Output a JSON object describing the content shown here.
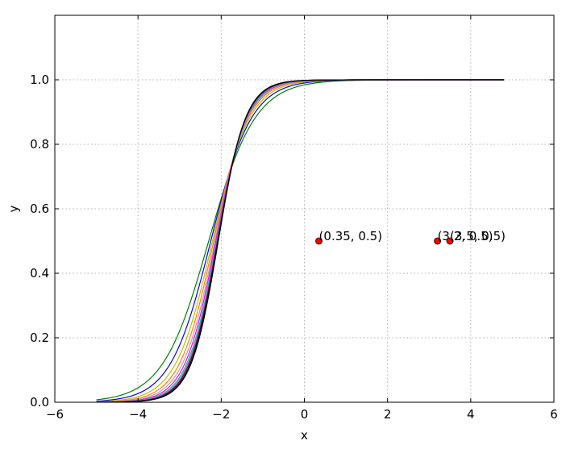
{
  "chart_data": {
    "type": "line",
    "title": "",
    "xlabel": "x",
    "ylabel": "y",
    "xlim": [
      -6,
      6
    ],
    "ylim": [
      0,
      1.2
    ],
    "xticks": [
      -6,
      -4,
      -2,
      0,
      2,
      4,
      6
    ],
    "yticks": [
      0.0,
      0.2,
      0.4,
      0.6,
      0.8,
      1.0
    ],
    "xtick_labels": [
      "−6",
      "−4",
      "−2",
      "0",
      "2",
      "4",
      "6"
    ],
    "ytick_labels": [
      "0.0",
      "0.2",
      "0.4",
      "0.6",
      "0.8",
      "1.0"
    ],
    "grid": true,
    "x_range": [
      -5,
      4.8
    ],
    "series": [
      {
        "color": "#008000",
        "x0": -2.3,
        "k": 1.8
      },
      {
        "color": "#0000ff",
        "x0": -2.25,
        "k": 2.05
      },
      {
        "color": "#bfbf00",
        "x0": -2.21,
        "k": 2.25
      },
      {
        "color": "#ff7f0e",
        "x0": -2.18,
        "k": 2.42
      },
      {
        "color": "#c0a0a0",
        "x0": -2.15,
        "k": 2.55
      },
      {
        "color": "#ff00ff",
        "x0": -2.13,
        "k": 2.68
      },
      {
        "color": "#00bfbf",
        "x0": -2.11,
        "k": 2.78
      },
      {
        "color": "#808080",
        "x0": -2.1,
        "k": 2.86
      },
      {
        "color": "#800000",
        "x0": -2.09,
        "k": 2.93
      },
      {
        "color": "#000080",
        "x0": -2.08,
        "k": 3.0
      },
      {
        "color": "#000000",
        "x0": -2.07,
        "k": 3.05
      }
    ],
    "points": [
      {
        "x": 0.35,
        "y": 0.5,
        "label": "(0.35, 0.5)"
      },
      {
        "x": 3.2,
        "y": 0.5,
        "label": "(3.2, 0.5)"
      },
      {
        "x": 3.5,
        "y": 0.5,
        "label": "(3.5, 0.5)"
      }
    ],
    "colors": {
      "point_fill": "#ff0000",
      "grid": "#b0b0b0",
      "frame": "#000000"
    }
  }
}
